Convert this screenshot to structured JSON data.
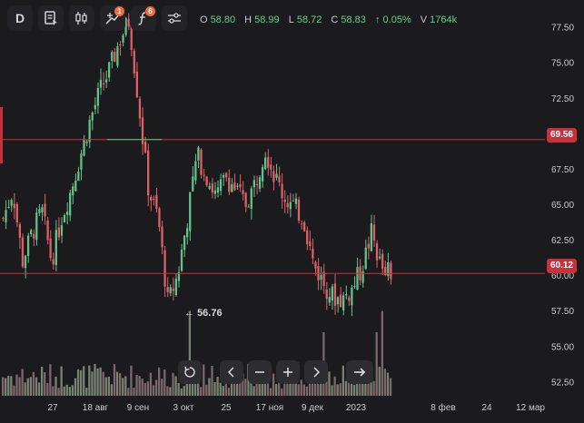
{
  "toolbar": {
    "interval": "D",
    "indicator_badge": "1",
    "strategy_badge": "6"
  },
  "ohlc": {
    "o_label": "O",
    "o_value": "58.80",
    "h_label": "H",
    "h_value": "58.99",
    "l_label": "L",
    "l_value": "58.72",
    "c_label": "C",
    "c_value": "58.83",
    "change": "↑ 0.05%",
    "v_label": "V",
    "v_value": "1764k"
  },
  "price_tags": {
    "upper": "69.56",
    "lower": "60.12"
  },
  "min_marker": "56.76",
  "chart_data": {
    "type": "candlestick",
    "y_ticks": [
      "77.50",
      "75.00",
      "72.50",
      "70.00",
      "67.50",
      "65.00",
      "62.50",
      "60.00",
      "57.50",
      "55.00",
      "52.50"
    ],
    "ylim": [
      51.5,
      78.5
    ],
    "x_ticks": [
      "27",
      "18 авг",
      "9 сен",
      "3 окт",
      "25",
      "17 ноя",
      "9 дек",
      "2023",
      "8 фев",
      "24",
      "12 мар"
    ],
    "horizontal_lines": [
      69.56,
      60.12
    ],
    "min_value": 56.76,
    "key_closes": [
      64,
      66,
      61,
      63,
      64.5,
      61,
      64,
      66,
      68.5,
      71,
      73,
      74.5,
      76.5,
      78,
      72,
      66,
      64,
      58,
      60,
      64,
      68.5,
      67,
      65.5,
      67,
      66,
      65,
      66.5,
      69,
      67,
      65.5,
      64.8,
      64,
      60.8,
      59.5,
      58.5,
      58.3,
      59,
      60.5,
      63,
      60.5,
      60.12
    ],
    "colors": {
      "up": "#63c28c",
      "down": "#e0606a",
      "line": "#c9303a",
      "background": "#1b1b1e"
    }
  },
  "controls": {}
}
